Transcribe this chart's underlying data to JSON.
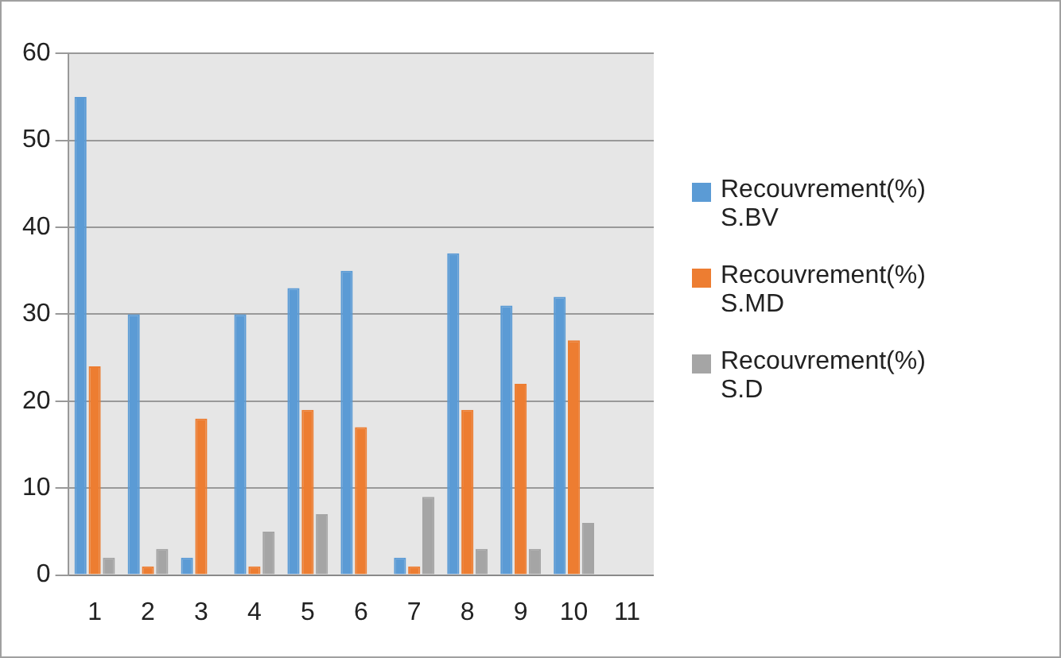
{
  "chart_data": {
    "type": "bar",
    "categories": [
      "1",
      "2",
      "3",
      "4",
      "5",
      "6",
      "7",
      "8",
      "9",
      "10",
      "11"
    ],
    "series": [
      {
        "name": "Recouvrement(%) S.BV",
        "color": "#5b9bd5",
        "values": [
          55,
          30,
          2,
          30,
          33,
          35,
          2,
          37,
          31,
          32,
          null
        ]
      },
      {
        "name": "Recouvrement(%) S.MD",
        "color": "#ed7d31",
        "values": [
          24,
          1,
          18,
          1,
          19,
          17,
          1,
          19,
          22,
          27,
          null
        ]
      },
      {
        "name": "Recouvrement(%) S.D",
        "color": "#a5a5a5",
        "values": [
          2,
          3,
          null,
          5,
          7,
          null,
          9,
          3,
          3,
          6,
          null
        ]
      }
    ],
    "ylim": [
      0,
      60
    ],
    "yticks": [
      0,
      10,
      20,
      30,
      40,
      50,
      60
    ],
    "grid": "y",
    "legend": "right"
  }
}
